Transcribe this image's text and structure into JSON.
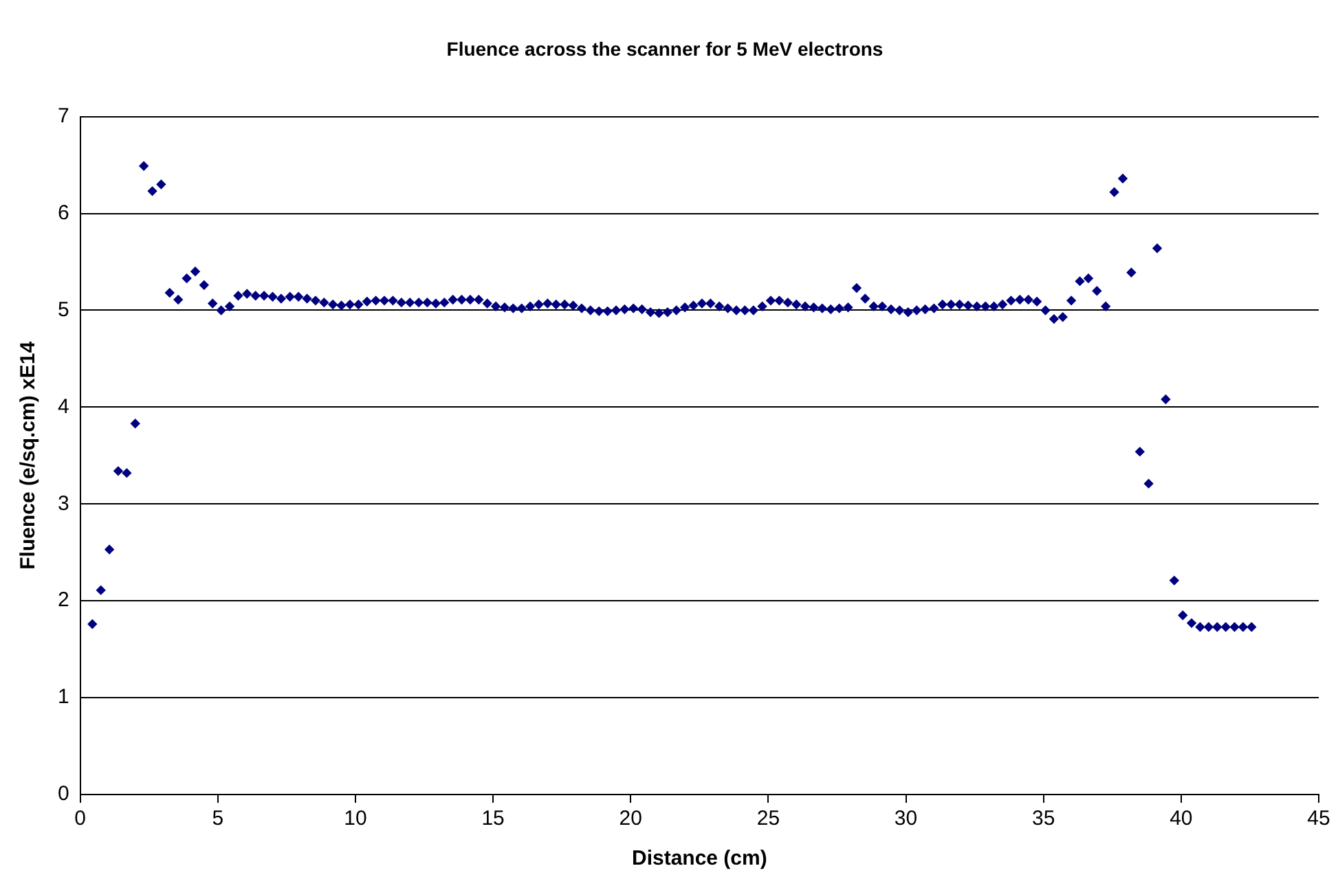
{
  "chart_data": {
    "type": "scatter",
    "title": "Fluence across the scanner for 5 MeV electrons",
    "xlabel": "Distance (cm)",
    "ylabel": "Fluence (e/sq.cm) xE14",
    "xlim": [
      0,
      45
    ],
    "xticks": [
      0,
      5,
      10,
      15,
      20,
      25,
      30,
      35,
      40,
      45
    ],
    "ylim": [
      0,
      7
    ],
    "yticks": [
      0,
      1,
      2,
      3,
      4,
      5,
      6,
      7
    ],
    "grid": "y",
    "legend": false,
    "marker": "diamond",
    "series": [
      {
        "color": "#000080",
        "x": [
          0.44,
          0.75,
          1.06,
          1.38,
          1.69,
          2.0,
          2.31,
          2.62,
          2.94,
          3.25,
          3.56,
          3.87,
          4.18,
          4.5,
          4.81,
          5.12,
          5.43,
          5.74,
          6.06,
          6.37,
          6.68,
          6.99,
          7.3,
          7.62,
          7.93,
          8.24,
          8.55,
          8.86,
          9.18,
          9.49,
          9.8,
          10.11,
          10.42,
          10.74,
          11.05,
          11.36,
          11.67,
          11.98,
          12.3,
          12.61,
          12.92,
          13.23,
          13.54,
          13.86,
          14.17,
          14.48,
          14.79,
          15.1,
          15.42,
          15.73,
          16.04,
          16.35,
          16.66,
          16.98,
          17.29,
          17.6,
          17.91,
          18.22,
          18.54,
          18.85,
          19.16,
          19.47,
          19.78,
          20.1,
          20.41,
          20.72,
          21.03,
          21.34,
          21.66,
          21.97,
          22.28,
          22.59,
          22.9,
          23.22,
          23.53,
          23.84,
          24.15,
          24.46,
          24.78,
          25.09,
          25.4,
          25.71,
          26.02,
          26.34,
          26.65,
          26.96,
          27.27,
          27.58,
          27.9,
          28.21,
          28.52,
          28.83,
          29.14,
          29.46,
          29.77,
          30.08,
          30.39,
          30.7,
          31.02,
          31.33,
          31.64,
          31.95,
          32.26,
          32.58,
          32.89,
          33.2,
          33.51,
          33.82,
          34.14,
          34.45,
          34.76,
          35.07,
          35.38,
          35.7,
          36.01,
          36.32,
          36.63,
          36.94,
          37.26,
          37.57,
          37.88,
          38.19,
          38.5,
          38.82,
          39.13,
          39.44,
          39.75,
          40.06,
          40.38,
          40.69,
          41.0,
          41.31,
          41.62,
          41.94,
          42.25,
          42.56
        ],
        "values": [
          1.76,
          2.11,
          2.53,
          3.34,
          3.32,
          3.83,
          6.49,
          6.23,
          6.3,
          5.18,
          5.11,
          5.33,
          5.4,
          5.26,
          5.07,
          5.0,
          5.04,
          5.15,
          5.17,
          5.15,
          5.15,
          5.14,
          5.12,
          5.14,
          5.14,
          5.12,
          5.1,
          5.08,
          5.06,
          5.05,
          5.06,
          5.06,
          5.09,
          5.1,
          5.1,
          5.1,
          5.08,
          5.08,
          5.08,
          5.08,
          5.07,
          5.08,
          5.11,
          5.11,
          5.11,
          5.11,
          5.07,
          5.04,
          5.03,
          5.02,
          5.02,
          5.04,
          5.06,
          5.07,
          5.06,
          5.06,
          5.05,
          5.02,
          5.0,
          4.99,
          4.99,
          5.0,
          5.01,
          5.02,
          5.01,
          4.98,
          4.97,
          4.98,
          5.0,
          5.03,
          5.05,
          5.07,
          5.07,
          5.04,
          5.02,
          5.0,
          5.0,
          5.0,
          5.04,
          5.1,
          5.1,
          5.08,
          5.06,
          5.04,
          5.03,
          5.02,
          5.01,
          5.02,
          5.03,
          5.23,
          5.12,
          5.04,
          5.04,
          5.01,
          5.0,
          4.98,
          5.0,
          5.01,
          5.02,
          5.06,
          5.06,
          5.06,
          5.05,
          5.04,
          5.04,
          5.04,
          5.06,
          5.1,
          5.11,
          5.11,
          5.09,
          5.0,
          4.91,
          4.93,
          5.1,
          5.3,
          5.33,
          5.2,
          5.04,
          6.22,
          6.36,
          5.39,
          3.54,
          3.21,
          5.64,
          4.08,
          2.21,
          1.85,
          1.77,
          1.73,
          1.73,
          1.73,
          1.73,
          1.73,
          1.73,
          1.73
        ]
      }
    ]
  }
}
